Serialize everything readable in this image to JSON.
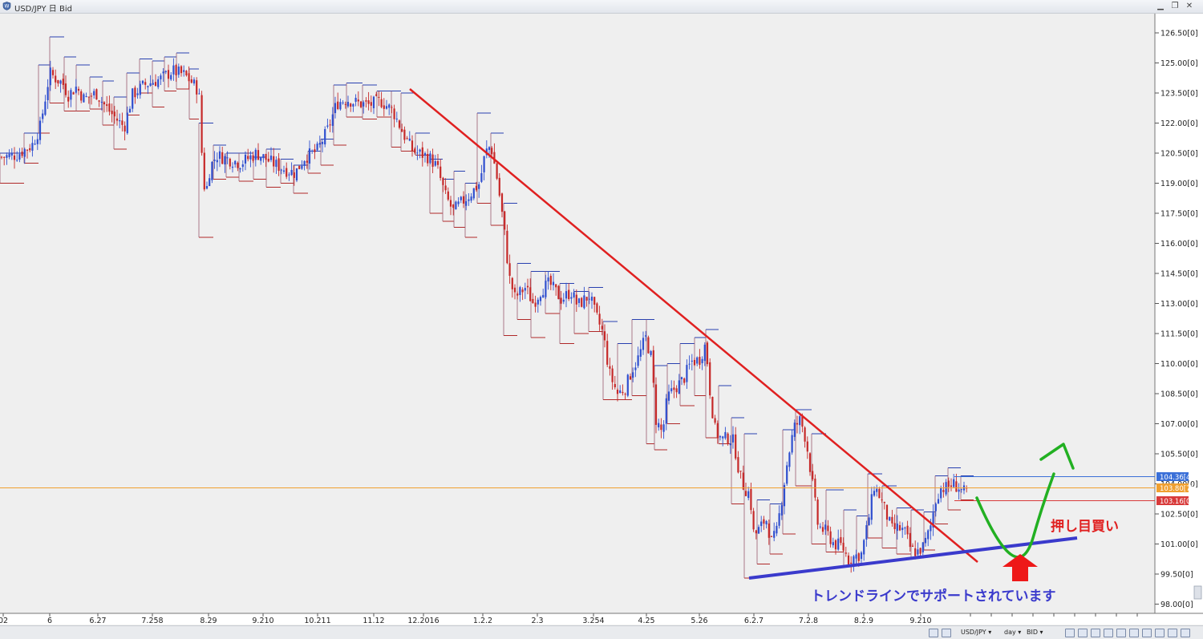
{
  "window": {
    "title": "USD/JPY 日 Bid",
    "minimize_icon": "minimize-icon",
    "restore_icon": "restore-icon",
    "close_icon": "close-icon"
  },
  "chart_data": {
    "type": "candlestick",
    "instrument": "USD/JPY",
    "timeframe": "day",
    "price_side": "BID",
    "y_range": [
      97.8,
      127.0
    ],
    "y_ticks": [
      "126.50[0]",
      "125.00[0]",
      "123.50[0]",
      "122.00[0]",
      "120.50[0]",
      "119.00[0]",
      "117.50[0]",
      "116.00[0]",
      "114.50[0]",
      "113.00[0]",
      "111.50[0]",
      "110.00[0]",
      "108.50[0]",
      "107.00[0]",
      "105.50[0]",
      "104.00[0]",
      "102.50[0]",
      "101.00[0]",
      "99.50[0]",
      "98.00[0]"
    ],
    "x_labels": [
      "02",
      "6",
      "6.27",
      "7.258",
      "8.29",
      "9.210",
      "10.211",
      "11.12",
      "12.2016",
      "1.2.2",
      "2.3",
      "3.254",
      "4.25",
      "5.26",
      "6.2.7",
      "7.2.8",
      "8.2.9",
      "9.210"
    ],
    "price_tags": [
      {
        "label": "104.36[4]",
        "price": 104.36,
        "color": "#3a6fd8"
      },
      {
        "label": "103.80[7]",
        "price": 103.8,
        "color": "#f0a030"
      },
      {
        "label": "103.16[0]",
        "price": 103.16,
        "color": "#d83a3a"
      }
    ],
    "close_path": [
      [
        0,
        120.3
      ],
      [
        20,
        120.4
      ],
      [
        40,
        120.9
      ],
      [
        50,
        121.8
      ],
      [
        62,
        124.5
      ],
      [
        70,
        124.2
      ],
      [
        78,
        124.0
      ],
      [
        85,
        123.4
      ],
      [
        95,
        123.8
      ],
      [
        105,
        123.2
      ],
      [
        120,
        123.5
      ],
      [
        132,
        122.8
      ],
      [
        145,
        122.2
      ],
      [
        155,
        121.8
      ],
      [
        165,
        123.4
      ],
      [
        180,
        123.9
      ],
      [
        200,
        124.2
      ],
      [
        215,
        124.6
      ],
      [
        230,
        124.4
      ],
      [
        240,
        124.0
      ],
      [
        248,
        123.6
      ],
      [
        252,
        120.2
      ],
      [
        256,
        118.3
      ],
      [
        262,
        119.8
      ],
      [
        270,
        120.4
      ],
      [
        285,
        120.2
      ],
      [
        300,
        120.0
      ],
      [
        320,
        120.5
      ],
      [
        340,
        120.0
      ],
      [
        355,
        119.7
      ],
      [
        368,
        119.5
      ],
      [
        380,
        120.3
      ],
      [
        395,
        120.6
      ],
      [
        408,
        121.6
      ],
      [
        420,
        123.0
      ],
      [
        432,
        123.2
      ],
      [
        445,
        123.0
      ],
      [
        460,
        122.9
      ],
      [
        475,
        123.1
      ],
      [
        490,
        122.6
      ],
      [
        505,
        121.3
      ],
      [
        515,
        120.6
      ],
      [
        535,
        120.3
      ],
      [
        545,
        119.8
      ],
      [
        555,
        118.4
      ],
      [
        565,
        117.6
      ],
      [
        572,
        117.9
      ],
      [
        585,
        118.4
      ],
      [
        598,
        119.0
      ],
      [
        605,
        120.5
      ],
      [
        612,
        120.9
      ],
      [
        620,
        119.2
      ],
      [
        628,
        116.9
      ],
      [
        635,
        114.3
      ],
      [
        642,
        113.3
      ],
      [
        655,
        113.8
      ],
      [
        665,
        113.0
      ],
      [
        675,
        113.7
      ],
      [
        685,
        114.0
      ],
      [
        700,
        113.2
      ],
      [
        712,
        113.6
      ],
      [
        720,
        112.9
      ],
      [
        735,
        113.4
      ],
      [
        742,
        112.5
      ],
      [
        752,
        111.5
      ],
      [
        760,
        109.5
      ],
      [
        770,
        108.5
      ],
      [
        780,
        108.8
      ],
      [
        788,
        109.7
      ],
      [
        795,
        110.2
      ],
      [
        805,
        111.3
      ],
      [
        812,
        110.3
      ],
      [
        818,
        107.2
      ],
      [
        826,
        106.5
      ],
      [
        832,
        108.3
      ],
      [
        842,
        108.8
      ],
      [
        852,
        109.2
      ],
      [
        862,
        110.1
      ],
      [
        872,
        110.2
      ],
      [
        880,
        111.0
      ],
      [
        886,
        108.3
      ],
      [
        892,
        106.6
      ],
      [
        900,
        106.2
      ],
      [
        908,
        106.3
      ],
      [
        915,
        106.1
      ],
      [
        922,
        104.5
      ],
      [
        928,
        103.8
      ],
      [
        935,
        103.5
      ],
      [
        940,
        101.4
      ],
      [
        948,
        101.8
      ],
      [
        955,
        102.3
      ],
      [
        962,
        101.1
      ],
      [
        968,
        101.5
      ],
      [
        975,
        103.3
      ],
      [
        982,
        105.2
      ],
      [
        990,
        106.8
      ],
      [
        998,
        107.2
      ],
      [
        1005,
        106.2
      ],
      [
        1012,
        104.3
      ],
      [
        1020,
        101.9
      ],
      [
        1030,
        101.6
      ],
      [
        1040,
        101.0
      ],
      [
        1050,
        100.9
      ],
      [
        1058,
        100.2
      ],
      [
        1066,
        100.4
      ],
      [
        1074,
        100.5
      ],
      [
        1082,
        102.0
      ],
      [
        1090,
        103.9
      ],
      [
        1098,
        103.3
      ],
      [
        1105,
        102.5
      ],
      [
        1112,
        101.7
      ],
      [
        1120,
        101.8
      ],
      [
        1128,
        101.6
      ],
      [
        1136,
        100.7
      ],
      [
        1144,
        100.6
      ],
      [
        1152,
        100.9
      ],
      [
        1160,
        101.8
      ],
      [
        1166,
        103.1
      ],
      [
        1172,
        103.8
      ],
      [
        1180,
        103.8
      ],
      [
        1188,
        104.0
      ],
      [
        1196,
        103.8
      ],
      [
        1204,
        103.5
      ]
    ],
    "highlow_boxes": [
      [
        0,
        30,
        120.5,
        119.0
      ],
      [
        30,
        48,
        121.5,
        120.0
      ],
      [
        48,
        62,
        124.9,
        121.5
      ],
      [
        62,
        80,
        126.3,
        123.0
      ],
      [
        80,
        95,
        125.3,
        122.6
      ],
      [
        95,
        112,
        124.9,
        122.6
      ],
      [
        112,
        128,
        124.3,
        122.7
      ],
      [
        128,
        142,
        124.1,
        121.9
      ],
      [
        142,
        158,
        123.3,
        120.7
      ],
      [
        158,
        174,
        124.5,
        122.4
      ],
      [
        174,
        190,
        125.2,
        123.5
      ],
      [
        190,
        205,
        125.1,
        122.8
      ],
      [
        205,
        220,
        125.3,
        123.6
      ],
      [
        220,
        236,
        125.5,
        123.7
      ],
      [
        236,
        248,
        124.7,
        122.2
      ],
      [
        248,
        266,
        122.0,
        116.3
      ],
      [
        266,
        282,
        120.9,
        119.2
      ],
      [
        282,
        298,
        120.5,
        119.3
      ],
      [
        298,
        316,
        120.5,
        119.1
      ],
      [
        316,
        332,
        120.3,
        119.2
      ],
      [
        332,
        350,
        120.7,
        118.8
      ],
      [
        350,
        366,
        120.2,
        119.0
      ],
      [
        366,
        384,
        119.9,
        118.5
      ],
      [
        384,
        400,
        120.6,
        119.5
      ],
      [
        400,
        416,
        121.2,
        119.9
      ],
      [
        416,
        432,
        123.9,
        120.9
      ],
      [
        432,
        452,
        124.0,
        122.3
      ],
      [
        452,
        470,
        123.9,
        122.2
      ],
      [
        470,
        488,
        123.6,
        122.3
      ],
      [
        488,
        500,
        123.6,
        120.8
      ],
      [
        500,
        518,
        123.5,
        120.6
      ],
      [
        518,
        536,
        121.5,
        120.4
      ],
      [
        536,
        552,
        120.2,
        117.5
      ],
      [
        552,
        566,
        119.2,
        117.1
      ],
      [
        566,
        580,
        119.6,
        116.8
      ],
      [
        580,
        595,
        119.0,
        116.3
      ],
      [
        595,
        612,
        122.5,
        118.0
      ],
      [
        612,
        628,
        121.5,
        116.9
      ],
      [
        628,
        645,
        118.0,
        111.4
      ],
      [
        645,
        662,
        115.0,
        112.2
      ],
      [
        662,
        680,
        114.6,
        111.3
      ],
      [
        680,
        698,
        114.6,
        112.5
      ],
      [
        698,
        716,
        114.0,
        111.0
      ],
      [
        716,
        734,
        113.6,
        111.5
      ],
      [
        734,
        752,
        113.8,
        111.6
      ],
      [
        752,
        770,
        112.1,
        108.2
      ],
      [
        770,
        788,
        111.0,
        108.2
      ],
      [
        788,
        806,
        112.2,
        108.4
      ],
      [
        806,
        816,
        112.2,
        106.0
      ],
      [
        816,
        832,
        109.9,
        105.7
      ],
      [
        832,
        848,
        110.0,
        107.0
      ],
      [
        848,
        866,
        111.0,
        107.9
      ],
      [
        866,
        880,
        111.3,
        108.4
      ],
      [
        880,
        896,
        111.7,
        106.3
      ],
      [
        896,
        912,
        108.9,
        106.0
      ],
      [
        912,
        928,
        107.3,
        103.0
      ],
      [
        928,
        944,
        106.5,
        99.3
      ],
      [
        944,
        960,
        103.2,
        100.0
      ],
      [
        960,
        976,
        103.0,
        100.5
      ],
      [
        976,
        992,
        106.7,
        101.5
      ],
      [
        992,
        1012,
        107.7,
        103.9
      ],
      [
        1012,
        1030,
        106.5,
        101.0
      ],
      [
        1030,
        1052,
        103.7,
        100.6
      ],
      [
        1052,
        1068,
        102.7,
        99.9
      ],
      [
        1068,
        1082,
        102.4,
        100.0
      ],
      [
        1082,
        1100,
        104.5,
        101.3
      ],
      [
        1100,
        1118,
        103.9,
        100.8
      ],
      [
        1118,
        1136,
        102.8,
        100.5
      ],
      [
        1136,
        1152,
        102.7,
        100.3
      ],
      [
        1152,
        1166,
        102.6,
        100.7
      ],
      [
        1166,
        1182,
        104.4,
        102.0
      ],
      [
        1182,
        1198,
        104.8,
        102.7
      ],
      [
        1198,
        1214,
        104.4,
        103.2
      ]
    ],
    "trendlines": [
      {
        "name": "resistance",
        "color": "#e02020",
        "from": [
          "11.12",
          123.7
        ],
        "to": [
          "after 9.210",
          100.1
        ]
      },
      {
        "name": "support",
        "color": "#3a3acc",
        "from": [
          "6.2.7",
          99.3
        ],
        "to": [
          "after 9.210",
          101.3
        ]
      }
    ],
    "annotations": [
      {
        "text": "押し目買い",
        "color": "#e02020"
      },
      {
        "text": "トレンドラインでサポートされています",
        "color": "#3a3acc"
      }
    ],
    "reference_line": {
      "price": 103.8,
      "color": "#f0a030"
    }
  },
  "statusbar": {
    "instrument": "USD/JPY ▾",
    "period": "day ▾",
    "side": "BID ▾"
  }
}
